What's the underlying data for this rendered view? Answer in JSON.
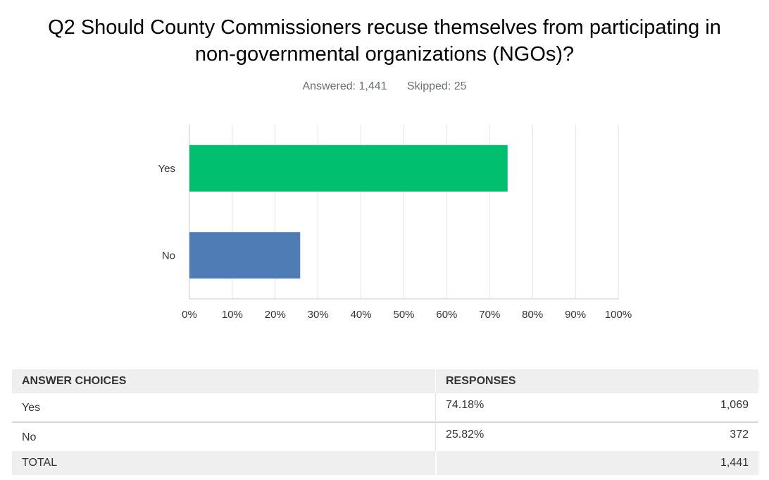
{
  "question": {
    "title_line1": "Q2 Should County Commissioners recuse themselves from participating in",
    "title_line2": "non-governmental organizations (NGOs)?",
    "answered": "Answered: 1,441",
    "skipped": "Skipped: 25"
  },
  "chart_data": {
    "type": "bar",
    "orientation": "horizontal",
    "categories": [
      "Yes",
      "No"
    ],
    "values": [
      74.18,
      25.82
    ],
    "colors": [
      "#00bf6f",
      "#507cb6"
    ],
    "xlim": [
      0,
      100
    ],
    "xticks": [
      "0%",
      "10%",
      "20%",
      "30%",
      "40%",
      "50%",
      "60%",
      "70%",
      "80%",
      "90%",
      "100%"
    ],
    "grid": true
  },
  "table": {
    "headers": [
      "ANSWER CHOICES",
      "RESPONSES"
    ],
    "rows": [
      {
        "choice": "Yes",
        "percent": "74.18%",
        "count": "1,069"
      },
      {
        "choice": "No",
        "percent": "25.82%",
        "count": "372"
      }
    ],
    "total_label": "TOTAL",
    "total_count": "1,441"
  }
}
